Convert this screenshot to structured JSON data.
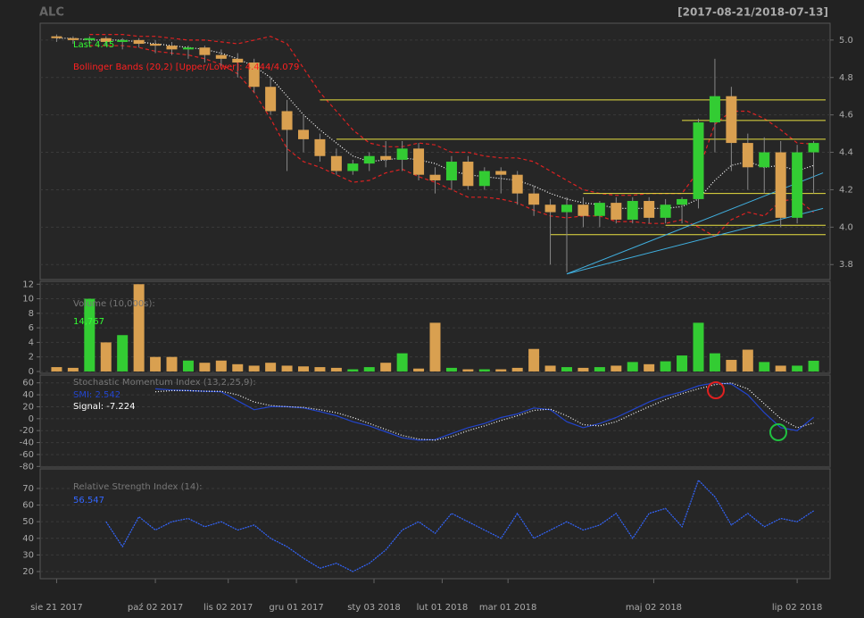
{
  "chart_data": [
    {
      "type": "candlestick",
      "title": "ALC",
      "subtitle": "[2017-08-21/2018-07-13]",
      "x": [
        "2017-08-21",
        "2017-08-28",
        "2017-09-04",
        "2017-09-11",
        "2017-09-18",
        "2017-09-25",
        "2017-10-02",
        "2017-10-09",
        "2017-10-16",
        "2017-10-23",
        "2017-10-30",
        "2017-11-06",
        "2017-11-13",
        "2017-11-20",
        "2017-11-27",
        "2017-12-04",
        "2017-12-11",
        "2017-12-18",
        "2017-12-25",
        "2018-01-01",
        "2018-01-08",
        "2018-01-15",
        "2018-01-22",
        "2018-01-29",
        "2018-02-05",
        "2018-02-12",
        "2018-02-19",
        "2018-02-26",
        "2018-03-05",
        "2018-03-12",
        "2018-03-19",
        "2018-03-26",
        "2018-04-02",
        "2018-04-09",
        "2018-04-16",
        "2018-04-23",
        "2018-04-30",
        "2018-05-07",
        "2018-05-14",
        "2018-05-21",
        "2018-05-28",
        "2018-06-04",
        "2018-06-11",
        "2018-06-18",
        "2018-06-25",
        "2018-07-02",
        "2018-07-09"
      ],
      "open": [
        5.02,
        5.01,
        5.0,
        5.01,
        4.99,
        5.0,
        4.98,
        4.97,
        4.95,
        4.96,
        4.92,
        4.9,
        4.88,
        4.75,
        4.62,
        4.52,
        4.47,
        4.38,
        4.3,
        4.34,
        4.38,
        4.36,
        4.42,
        4.28,
        4.25,
        4.35,
        4.22,
        4.3,
        4.28,
        4.18,
        4.12,
        4.08,
        4.12,
        4.06,
        4.13,
        4.04,
        4.14,
        4.05,
        4.12,
        4.15,
        4.56,
        4.7,
        4.45,
        4.32,
        4.4,
        4.05,
        4.4
      ],
      "high": [
        5.03,
        5.02,
        5.02,
        5.02,
        5.01,
        5.01,
        5.0,
        4.99,
        4.97,
        4.97,
        4.95,
        4.93,
        4.9,
        4.8,
        4.68,
        4.6,
        4.5,
        4.42,
        4.36,
        4.4,
        4.46,
        4.46,
        4.45,
        4.32,
        4.38,
        4.38,
        4.32,
        4.32,
        4.3,
        4.22,
        4.15,
        4.16,
        4.16,
        4.14,
        4.16,
        4.16,
        4.16,
        4.15,
        4.16,
        4.58,
        4.9,
        4.75,
        4.5,
        4.48,
        4.46,
        4.44,
        4.46
      ],
      "low": [
        4.99,
        4.98,
        4.98,
        4.97,
        4.95,
        4.96,
        4.93,
        4.92,
        4.9,
        4.88,
        4.86,
        4.8,
        4.72,
        4.6,
        4.3,
        4.4,
        4.35,
        4.28,
        4.28,
        4.3,
        4.32,
        4.3,
        4.25,
        4.18,
        4.2,
        4.2,
        4.2,
        4.18,
        4.12,
        4.06,
        3.8,
        3.76,
        4.0,
        4.0,
        4.02,
        4.02,
        4.02,
        4.02,
        4.02,
        4.1,
        4.4,
        4.3,
        4.2,
        4.18,
        4.0,
        4.02,
        4.18
      ],
      "close": [
        5.01,
        5.0,
        5.01,
        4.99,
        5.0,
        4.98,
        4.97,
        4.95,
        4.96,
        4.92,
        4.9,
        4.88,
        4.75,
        4.62,
        4.52,
        4.47,
        4.38,
        4.3,
        4.34,
        4.38,
        4.36,
        4.42,
        4.28,
        4.25,
        4.35,
        4.22,
        4.3,
        4.28,
        4.18,
        4.12,
        4.08,
        4.12,
        4.06,
        4.13,
        4.04,
        4.14,
        4.05,
        4.12,
        4.15,
        4.56,
        4.7,
        4.45,
        4.32,
        4.4,
        4.05,
        4.4,
        4.45
      ],
      "up_color": "#33cc33",
      "down_color": "#d9a050",
      "lines": [
        {
          "color": "#dd2222",
          "dash": "4,3",
          "values": [
            null,
            null,
            5.03,
            5.03,
            5.03,
            5.02,
            5.02,
            5.01,
            5.0,
            5.0,
            4.99,
            4.98,
            5.0,
            5.02,
            4.98,
            4.85,
            4.72,
            4.62,
            4.52,
            4.45,
            4.43,
            4.43,
            4.45,
            4.44,
            4.4,
            4.4,
            4.38,
            4.37,
            4.37,
            4.35,
            4.3,
            4.25,
            4.2,
            4.18,
            4.17,
            4.17,
            4.18,
            4.18,
            4.18,
            4.3,
            4.55,
            4.62,
            4.62,
            4.58,
            4.52,
            4.45,
            4.444
          ]
        },
        {
          "color": "#ffffff",
          "dash": "1,2",
          "values": [
            5.01,
            5.01,
            5.0,
            5.0,
            5.0,
            4.99,
            4.98,
            4.97,
            4.96,
            4.95,
            4.93,
            4.9,
            4.86,
            4.8,
            4.7,
            4.6,
            4.52,
            4.45,
            4.38,
            4.35,
            4.36,
            4.37,
            4.36,
            4.34,
            4.3,
            4.28,
            4.27,
            4.26,
            4.25,
            4.22,
            4.18,
            4.15,
            4.13,
            4.12,
            4.1,
            4.1,
            4.1,
            4.1,
            4.11,
            4.15,
            4.25,
            4.33,
            4.35,
            4.32,
            4.33,
            4.3,
            4.33
          ]
        },
        {
          "color": "#dd2222",
          "dash": "4,3",
          "values": [
            null,
            null,
            4.97,
            4.97,
            4.97,
            4.96,
            4.94,
            4.93,
            4.92,
            4.9,
            4.87,
            4.82,
            4.72,
            4.58,
            4.42,
            4.35,
            4.32,
            4.28,
            4.24,
            4.25,
            4.29,
            4.31,
            4.27,
            4.24,
            4.2,
            4.16,
            4.16,
            4.15,
            4.13,
            4.09,
            4.06,
            4.05,
            4.06,
            4.06,
            4.03,
            4.03,
            4.02,
            4.02,
            4.04,
            4.0,
            3.95,
            4.04,
            4.08,
            4.06,
            4.14,
            4.15,
            4.079
          ]
        }
      ],
      "hlines": [
        {
          "value": 4.68,
          "from": "2017-12-11"
        },
        {
          "value": 4.57,
          "from": "2018-05-14"
        },
        {
          "value": 4.47,
          "from": "2017-12-18"
        },
        {
          "value": 4.18,
          "from": "2018-04-02"
        },
        {
          "value": 4.01,
          "from": "2018-05-07"
        },
        {
          "value": 3.96,
          "from": "2018-03-19"
        }
      ],
      "hline_color": "#e8e040",
      "trendlines": [
        {
          "x": [
            "2018-03-26",
            "2018-07-13"
          ],
          "y": [
            3.75,
            4.29
          ]
        },
        {
          "x": [
            "2018-03-26",
            "2018-07-13"
          ],
          "y": [
            3.75,
            4.1
          ]
        }
      ],
      "trend_color": "#40b0e0",
      "legend": [
        {
          "text": "Last 4.45",
          "color": "#33ff33"
        },
        {
          "text": "Bollinger Bands (20,2) [Upper/Lower]: 4.444/4.079",
          "color": "#ff2020"
        }
      ],
      "xlim": [
        "2017-08-14",
        "2018-07-16"
      ],
      "xticks": [
        {
          "value": "2017-08-21",
          "label": "sie 21 2017"
        },
        {
          "value": "2017-10-02",
          "label": "paź 02 2017"
        },
        {
          "value": "2017-11-02",
          "label": "lis 02 2017"
        },
        {
          "value": "2017-12-01",
          "label": "gru 01 2017"
        },
        {
          "value": "2018-01-03",
          "label": "sty 03 2018"
        },
        {
          "value": "2018-02-01",
          "label": "lut 01 2018"
        },
        {
          "value": "2018-03-01",
          "label": "mar 01 2018"
        },
        {
          "value": "2018-05-02",
          "label": "maj 02 2018"
        },
        {
          "value": "2018-07-02",
          "label": "lip 02 2018"
        }
      ],
      "ylim": [
        3.72,
        5.09
      ],
      "yticks": [
        3.8,
        {
          "value": 4,
          "label": "4.0"
        },
        4.2,
        4.4,
        4.6,
        4.8,
        {
          "value": 5,
          "label": "5.0"
        }
      ],
      "axis_side": "right",
      "grid": true
    },
    {
      "type": "bar",
      "values": [
        0.6,
        0.5,
        10,
        4,
        5,
        12,
        2,
        2,
        1.5,
        1.2,
        1.5,
        1,
        0.8,
        1.2,
        0.8,
        0.7,
        0.6,
        0.5,
        0.3,
        0.6,
        1.2,
        2.5,
        0.4,
        6.7,
        0.5,
        0.3,
        0.3,
        0.3,
        0.5,
        3.1,
        0.8,
        0.6,
        0.5,
        0.6,
        0.8,
        1.3,
        1,
        1.4,
        2.2,
        6.7,
        2.5,
        1.6,
        3,
        1.3,
        0.8,
        0.8,
        1.4767
      ],
      "legend": [
        {
          "text": "Volume (10,000s):",
          "color": "#777777"
        },
        {
          "text": "14,767",
          "color": "#33ff33"
        }
      ],
      "ylim": [
        -0.25,
        12.4
      ],
      "yticks": [
        0,
        2,
        4,
        6,
        8,
        10,
        12
      ],
      "axis_side": "left",
      "grid": true
    },
    {
      "type": "line",
      "lines": [
        {
          "color": "#2244cc",
          "dash": "",
          "values": [
            null,
            null,
            null,
            null,
            null,
            null,
            50,
            48,
            47,
            46,
            45,
            30,
            15,
            20,
            20,
            18,
            12,
            5,
            -5,
            -12,
            -22,
            -32,
            -36,
            -35,
            -25,
            -15,
            -8,
            2,
            8,
            18,
            15,
            -5,
            -15,
            -8,
            2,
            15,
            28,
            38,
            45,
            55,
            60,
            58,
            40,
            10,
            -15,
            -20,
            2.542
          ]
        },
        {
          "color": "#ffffff",
          "dash": "1,2",
          "values": [
            null,
            null,
            null,
            null,
            null,
            null,
            45,
            47,
            47,
            46,
            46,
            40,
            28,
            22,
            20,
            19,
            15,
            10,
            2,
            -8,
            -18,
            -28,
            -34,
            -36,
            -30,
            -20,
            -12,
            -3,
            5,
            14,
            16,
            5,
            -10,
            -12,
            -5,
            8,
            20,
            32,
            42,
            50,
            57,
            60,
            50,
            25,
            0,
            -15,
            -7.224
          ]
        }
      ],
      "legend": [
        {
          "text": "Stochastic Momentum Index (13,2,25,9):",
          "color": "#777777"
        },
        {
          "text": "SMI: 2.542",
          "color": "#2244cc"
        },
        {
          "text": "Signal: -7.224",
          "color": "#ffffff"
        }
      ],
      "ylim": [
        -81,
        73
      ],
      "yticks": [
        -80,
        -60,
        -40,
        -20,
        0,
        20,
        40,
        60
      ],
      "axis_side": "left",
      "grid": true
    },
    {
      "type": "line",
      "lines": [
        {
          "color": "#3366ff",
          "dash": "2,1",
          "values": [
            null,
            null,
            null,
            50,
            35,
            53,
            45,
            50,
            52,
            47,
            50,
            45,
            48,
            40,
            35,
            28,
            22,
            25,
            20,
            25,
            33,
            45,
            50,
            43,
            55,
            50,
            45,
            40,
            55,
            40,
            45,
            50,
            45,
            48,
            55,
            40,
            55,
            58,
            47,
            75,
            65,
            48,
            55,
            47,
            52,
            50,
            56.547
          ]
        }
      ],
      "legend": [
        {
          "text": "Relative Strength Index (14):",
          "color": "#777777"
        },
        {
          "text": "56.547",
          "color": "#3366ff"
        }
      ],
      "ylim": [
        15.7,
        81.8
      ],
      "yticks": [
        20,
        30,
        40,
        50,
        60,
        70
      ],
      "axis_side": "left",
      "grid": true
    }
  ]
}
